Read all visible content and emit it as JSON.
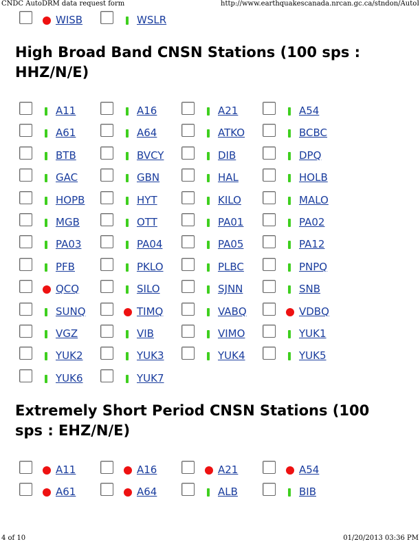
{
  "header": {
    "left": "CNDC AutoDRM data request form",
    "right": "http://www.earthquakescanada.nrcan.gc.ca/stndon/AutoDRM/..."
  },
  "footer": {
    "page": "4 of 10",
    "timestamp": "01/20/2013 03:36 PM"
  },
  "top_rows": [
    [
      {
        "code": "WISB",
        "status": "red"
      },
      {
        "code": "WSLR",
        "status": "green"
      }
    ]
  ],
  "sections": [
    {
      "title": "High Broad Band CNSN Stations (100 sps : HHZ/N/E)",
      "rows": [
        [
          {
            "code": "A11",
            "status": "green"
          },
          {
            "code": "A16",
            "status": "green"
          },
          {
            "code": "A21",
            "status": "green"
          },
          {
            "code": "A54",
            "status": "green"
          }
        ],
        [
          {
            "code": "A61",
            "status": "green"
          },
          {
            "code": "A64",
            "status": "green"
          },
          {
            "code": "ATKO",
            "status": "green"
          },
          {
            "code": "BCBC",
            "status": "green"
          }
        ],
        [
          {
            "code": "BTB",
            "status": "green"
          },
          {
            "code": "BVCY",
            "status": "green"
          },
          {
            "code": "DIB",
            "status": "green"
          },
          {
            "code": "DPQ",
            "status": "green"
          }
        ],
        [
          {
            "code": "GAC",
            "status": "green"
          },
          {
            "code": "GBN",
            "status": "green"
          },
          {
            "code": "HAL",
            "status": "green"
          },
          {
            "code": "HOLB",
            "status": "green"
          }
        ],
        [
          {
            "code": "HOPB",
            "status": "green"
          },
          {
            "code": "HYT",
            "status": "green"
          },
          {
            "code": "KILO",
            "status": "green"
          },
          {
            "code": "MALO",
            "status": "green"
          }
        ],
        [
          {
            "code": "MGB",
            "status": "green"
          },
          {
            "code": "OTT",
            "status": "green"
          },
          {
            "code": "PA01",
            "status": "green"
          },
          {
            "code": "PA02",
            "status": "green"
          }
        ],
        [
          {
            "code": "PA03",
            "status": "green"
          },
          {
            "code": "PA04",
            "status": "green"
          },
          {
            "code": "PA05",
            "status": "green"
          },
          {
            "code": "PA12",
            "status": "green"
          }
        ],
        [
          {
            "code": "PFB",
            "status": "green"
          },
          {
            "code": "PKLO",
            "status": "green"
          },
          {
            "code": "PLBC",
            "status": "green"
          },
          {
            "code": "PNPQ",
            "status": "green"
          }
        ],
        [
          {
            "code": "QCQ",
            "status": "red"
          },
          {
            "code": "SILO",
            "status": "green"
          },
          {
            "code": "SJNN",
            "status": "green"
          },
          {
            "code": "SNB",
            "status": "green"
          }
        ],
        [
          {
            "code": "SUNQ",
            "status": "green"
          },
          {
            "code": "TIMQ",
            "status": "red"
          },
          {
            "code": "VABQ",
            "status": "green"
          },
          {
            "code": "VDBQ",
            "status": "red"
          }
        ],
        [
          {
            "code": "VGZ",
            "status": "green"
          },
          {
            "code": "VIB",
            "status": "green"
          },
          {
            "code": "VIMO",
            "status": "green"
          },
          {
            "code": "YUK1",
            "status": "green"
          }
        ],
        [
          {
            "code": "YUK2",
            "status": "green"
          },
          {
            "code": "YUK3",
            "status": "green"
          },
          {
            "code": "YUK4",
            "status": "green"
          },
          {
            "code": "YUK5",
            "status": "green"
          }
        ],
        [
          {
            "code": "YUK6",
            "status": "green"
          },
          {
            "code": "YUK7",
            "status": "green"
          }
        ]
      ]
    },
    {
      "title": "Extremely Short Period CNSN Stations (100 sps : EHZ/N/E)",
      "rows": [
        [
          {
            "code": "A11",
            "status": "red"
          },
          {
            "code": "A16",
            "status": "red"
          },
          {
            "code": "A21",
            "status": "red"
          },
          {
            "code": "A54",
            "status": "red"
          }
        ],
        [
          {
            "code": "A61",
            "status": "red"
          },
          {
            "code": "A64",
            "status": "red"
          },
          {
            "code": "ALB",
            "status": "green"
          },
          {
            "code": "BIB",
            "status": "green"
          }
        ]
      ]
    }
  ],
  "colors": {
    "status_green": "#3fcf1f",
    "status_red": "#ee1111",
    "link": "#1a3d9e"
  }
}
